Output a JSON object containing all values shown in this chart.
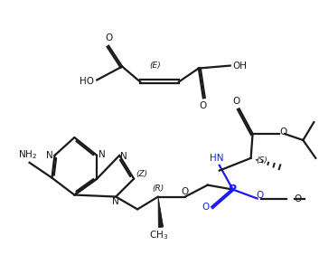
{
  "bg_color": "#ffffff",
  "lc": "#1a1a1a",
  "bc": "#1a1aee",
  "lw": 1.6,
  "fig_w": 3.53,
  "fig_h": 3.03,
  "xlim": [
    0,
    9.0
  ],
  "ylim": [
    0,
    7.7
  ]
}
